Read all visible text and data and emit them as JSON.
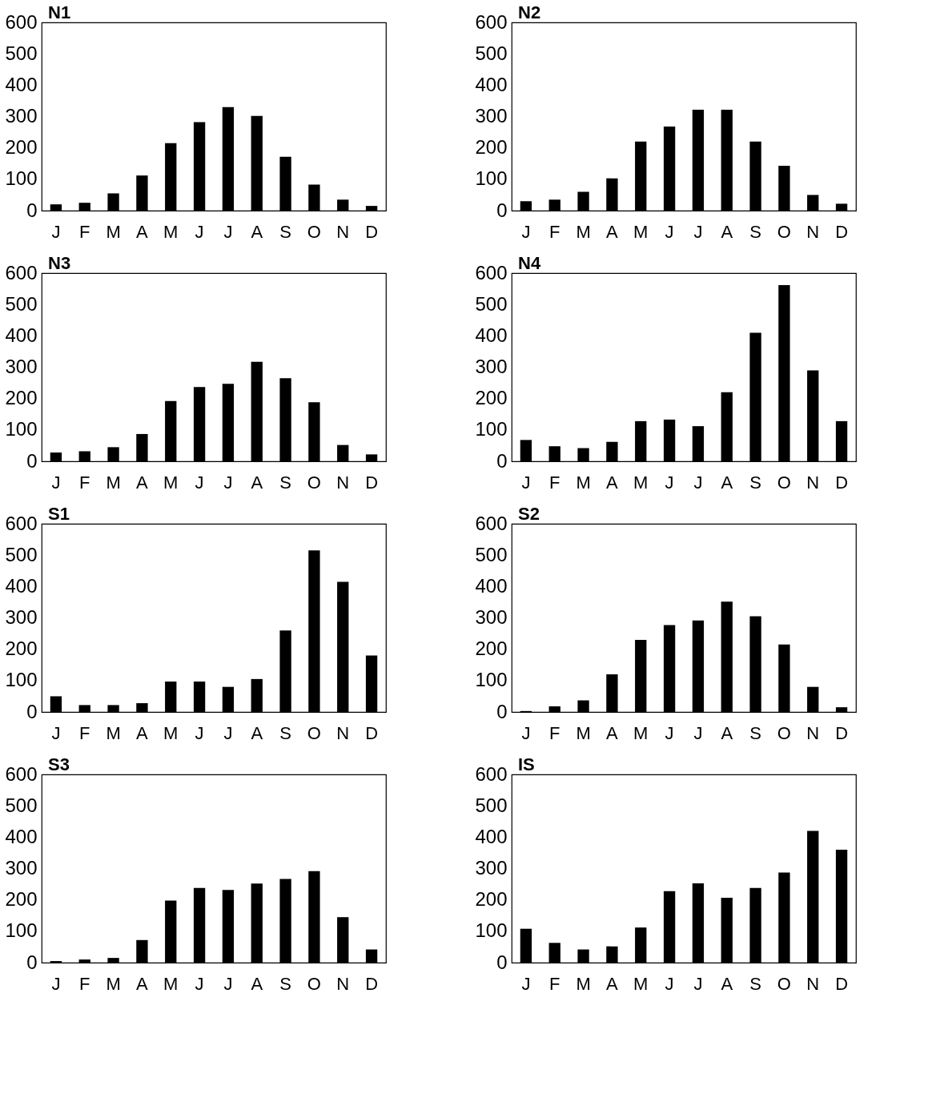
{
  "chart_data": [
    {
      "type": "bar",
      "title": "N1",
      "categories": [
        "J",
        "F",
        "M",
        "A",
        "M",
        "J",
        "J",
        "A",
        "S",
        "O",
        "N",
        "D"
      ],
      "values": [
        20,
        25,
        55,
        112,
        215,
        282,
        330,
        302,
        172,
        83,
        35,
        15
      ],
      "color": "#000000",
      "ylim": [
        0,
        600
      ],
      "yticks": [
        0,
        100,
        200,
        300,
        400,
        500,
        600
      ]
    },
    {
      "type": "bar",
      "title": "N2",
      "categories": [
        "J",
        "F",
        "M",
        "A",
        "M",
        "J",
        "J",
        "A",
        "S",
        "O",
        "N",
        "D"
      ],
      "values": [
        30,
        35,
        60,
        103,
        220,
        268,
        322,
        322,
        220,
        143,
        50,
        22
      ],
      "color": "#000000",
      "ylim": [
        0,
        600
      ],
      "yticks": [
        0,
        100,
        200,
        300,
        400,
        500,
        600
      ]
    },
    {
      "type": "bar",
      "title": "N3",
      "categories": [
        "J",
        "F",
        "M",
        "A",
        "M",
        "J",
        "J",
        "A",
        "S",
        "O",
        "N",
        "D"
      ],
      "values": [
        28,
        32,
        45,
        87,
        192,
        237,
        247,
        317,
        265,
        188,
        52,
        22
      ],
      "color": "#000000",
      "ylim": [
        0,
        600
      ],
      "yticks": [
        0,
        100,
        200,
        300,
        400,
        500,
        600
      ]
    },
    {
      "type": "bar",
      "title": "N4",
      "categories": [
        "J",
        "F",
        "M",
        "A",
        "M",
        "J",
        "J",
        "A",
        "S",
        "O",
        "N",
        "D"
      ],
      "values": [
        68,
        48,
        42,
        62,
        128,
        133,
        112,
        220,
        410,
        562,
        290,
        128
      ],
      "color": "#000000",
      "ylim": [
        0,
        600
      ],
      "yticks": [
        0,
        100,
        200,
        300,
        400,
        500,
        600
      ]
    },
    {
      "type": "bar",
      "title": "S1",
      "categories": [
        "J",
        "F",
        "M",
        "A",
        "M",
        "J",
        "J",
        "A",
        "S",
        "O",
        "N",
        "D"
      ],
      "values": [
        50,
        22,
        22,
        28,
        97,
        97,
        80,
        105,
        260,
        515,
        415,
        180
      ],
      "color": "#000000",
      "ylim": [
        0,
        600
      ],
      "yticks": [
        0,
        100,
        200,
        300,
        400,
        500,
        600
      ]
    },
    {
      "type": "bar",
      "title": "S2",
      "categories": [
        "J",
        "F",
        "M",
        "A",
        "M",
        "J",
        "J",
        "A",
        "S",
        "O",
        "N",
        "D"
      ],
      "values": [
        3,
        18,
        37,
        120,
        230,
        277,
        292,
        352,
        305,
        215,
        80,
        15
      ],
      "color": "#000000",
      "ylim": [
        0,
        600
      ],
      "yticks": [
        0,
        100,
        200,
        300,
        400,
        500,
        600
      ]
    },
    {
      "type": "bar",
      "title": "S3",
      "categories": [
        "J",
        "F",
        "M",
        "A",
        "M",
        "J",
        "J",
        "A",
        "S",
        "O",
        "N",
        "D"
      ],
      "values": [
        5,
        10,
        15,
        72,
        198,
        238,
        232,
        252,
        267,
        292,
        145,
        42
      ],
      "color": "#000000",
      "ylim": [
        0,
        600
      ],
      "yticks": [
        0,
        100,
        200,
        300,
        400,
        500,
        600
      ]
    },
    {
      "type": "bar",
      "title": "IS",
      "categories": [
        "J",
        "F",
        "M",
        "A",
        "M",
        "J",
        "J",
        "A",
        "S",
        "O",
        "N",
        "D"
      ],
      "values": [
        108,
        63,
        42,
        52,
        112,
        228,
        253,
        207,
        238,
        287,
        420,
        360
      ],
      "color": "#000000",
      "ylim": [
        0,
        600
      ],
      "yticks": [
        0,
        100,
        200,
        300,
        400,
        500,
        600
      ]
    }
  ]
}
